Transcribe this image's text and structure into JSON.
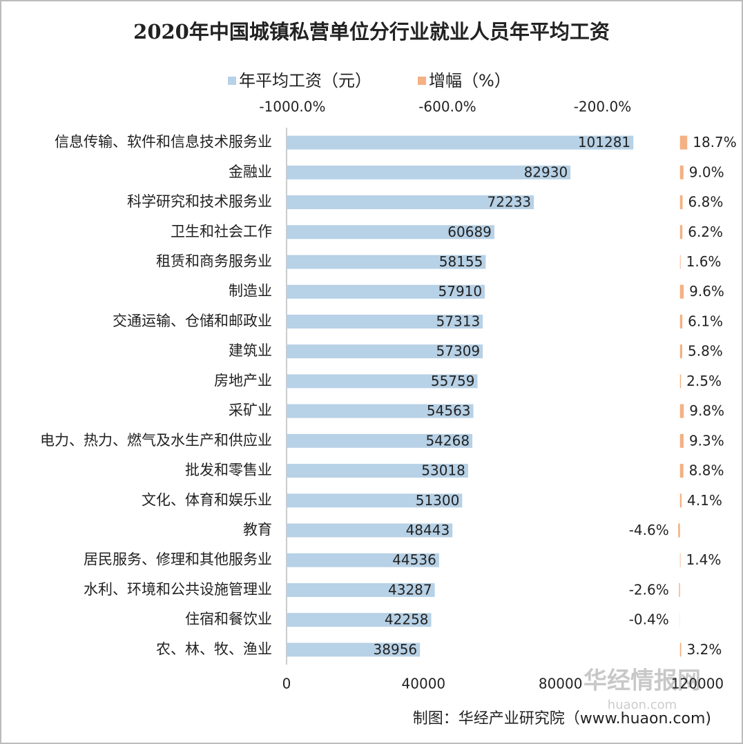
{
  "chart_data": {
    "type": "bar",
    "orientation": "horizontal",
    "title": "2020年中国城镇私营单位分行业就业人员年平均工资",
    "categories": [
      "信息传输、软件和信息技术服务业",
      "金融业",
      "科学研究和技术服务业",
      "卫生和社会工作",
      "租赁和商务服务业",
      "制造业",
      "交通运输、仓储和邮政业",
      "建筑业",
      "房地产业",
      "采矿业",
      "电力、热力、燃气及水生产和供应业",
      "批发和零售业",
      "文化、体育和娱乐业",
      "教育",
      "居民服务、修理和其他服务业",
      "水利、环境和公共设施管理业",
      "住宿和餐饮业",
      "农、林、牧、渔业"
    ],
    "series": [
      {
        "name": "年平均工资（元）",
        "color": "#b7d1e6",
        "values": [
          101281,
          82930,
          72233,
          60689,
          58155,
          57910,
          57313,
          57309,
          55759,
          54563,
          54268,
          53018,
          51300,
          48443,
          44536,
          43287,
          42258,
          38956
        ]
      },
      {
        "name": "增幅（%）",
        "color": "#f4b183",
        "axis": "x2",
        "values": [
          18.7,
          9.0,
          6.8,
          6.2,
          1.6,
          9.6,
          6.1,
          5.8,
          2.5,
          9.8,
          9.3,
          8.8,
          4.1,
          -4.6,
          1.4,
          -2.6,
          -0.4,
          3.2
        ],
        "value_labels": [
          "18.7%",
          "9.0%",
          "6.8%",
          "6.2%",
          "1.6%",
          "9.6%",
          "6.1%",
          "5.8%",
          "2.5%",
          "9.8%",
          "9.3%",
          "8.8%",
          "4.1%",
          "-4.6%",
          "1.4%",
          "-2.6%",
          "-0.4%",
          "3.2%"
        ]
      }
    ],
    "xlim": [
      0,
      120000
    ],
    "xticks": [
      0,
      40000,
      80000,
      120000
    ],
    "x2lim": [
      -1015,
      45
    ],
    "x2ticks": [
      {
        "value": -1000,
        "label": "-1000.0%"
      },
      {
        "value": -600,
        "label": "-600.0%"
      },
      {
        "value": -200,
        "label": "-200.0%"
      }
    ],
    "source": "制图：华经产业研究院（www.huaon.com)",
    "watermark": [
      "华经情报网",
      "huaon.com"
    ]
  }
}
